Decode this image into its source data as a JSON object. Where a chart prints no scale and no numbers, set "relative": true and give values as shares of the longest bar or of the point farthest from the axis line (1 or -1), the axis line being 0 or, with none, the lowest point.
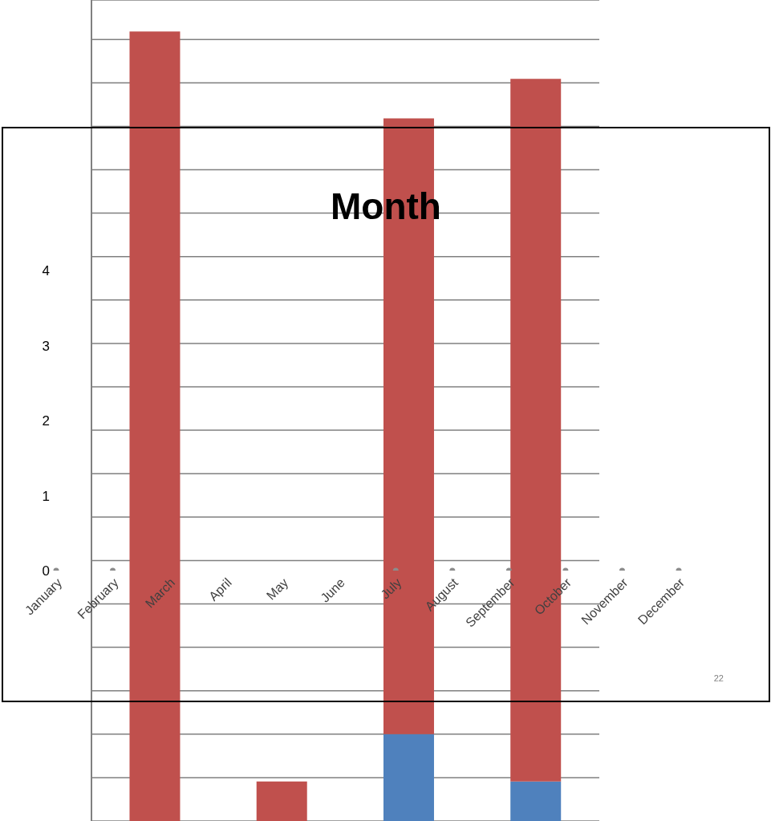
{
  "chart_data": [
    {
      "type": "bar",
      "stacked": true,
      "relative": true,
      "grid": "y",
      "categories": [
        null,
        null,
        null,
        null
      ],
      "series": [
        {
          "color": "#4f81bd",
          "values": [
            null,
            null,
            0.11,
            0.05
          ]
        },
        {
          "color": "#c0504d",
          "values": [
            1,
            0.05,
            0.78,
            0.89
          ]
        }
      ]
    },
    {
      "type": "scatter",
      "title": "Month",
      "categories": [
        "January",
        "February",
        "March",
        "April",
        "May",
        "June",
        "July",
        "August",
        "September",
        "October",
        "November",
        "December"
      ],
      "values": [
        0,
        0,
        null,
        null,
        null,
        null,
        0,
        0,
        0,
        0,
        0,
        0
      ],
      "color": "#8c8c8c",
      "marker": "circle",
      "ylim": [
        0,
        4
      ],
      "yticks": [
        0,
        1,
        2,
        3,
        4
      ],
      "grid": false,
      "annotations": [
        "22"
      ]
    }
  ]
}
